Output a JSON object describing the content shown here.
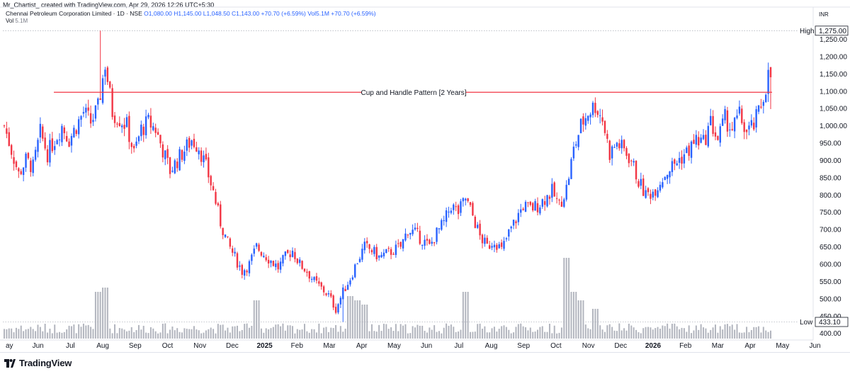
{
  "header": {
    "credit": "Mr_Chartist_ created with TradingView.com, Apr 29, 2026 12:26 UTC+5:30",
    "symbol": "Chennai Petroleum Corporation Limited · 1D · NSE",
    "ohlc": "O1,080.00  H1,145.00  L1,048.50  C1,143.00  +70.70 (+6.59%)  Vol5.1M  +70.70 (+6.59%)",
    "vol_label": "Vol",
    "vol_value": "5.1M"
  },
  "footer": {
    "brand": "TradingView"
  },
  "colors": {
    "up": "#2962ff",
    "down": "#f23645",
    "volume": "#b2b5be",
    "pattern_line": "#f23645",
    "axis_text": "#131722",
    "grid": "#e0e3eb"
  },
  "chart_data": {
    "type": "candlestick",
    "currency": "INR",
    "y_ticks": [
      "1,250.00",
      "1,200.00",
      "1,150.00",
      "1,100.00",
      "1,050.00",
      "1,000.00",
      "950.00",
      "900.00",
      "850.00",
      "800.00",
      "750.00",
      "700.00",
      "650.00",
      "600.00",
      "550.00",
      "500.00",
      "450.00",
      "400.00"
    ],
    "ylim": [
      385,
      1290
    ],
    "x_ticks": [
      "ay",
      "Jun",
      "Jul",
      "Aug",
      "Sep",
      "Oct",
      "Nov",
      "Dec",
      "2025",
      "Feb",
      "Mar",
      "Apr",
      "May",
      "Jun",
      "Jul",
      "Aug",
      "Sep",
      "Oct",
      "Nov",
      "Dec",
      "2026",
      "Feb",
      "Mar",
      "Apr",
      "May",
      "Jun"
    ],
    "bold_x_ticks": [
      "2025",
      "2026"
    ],
    "high": {
      "label": "High",
      "value": "1,275.00",
      "price": 1275
    },
    "low": {
      "label": "Low",
      "value": "433.10",
      "price": 433.1
    },
    "annotation": {
      "text": "Cup and Handle Pattern [2 Years]",
      "price": 1097
    },
    "price_path": [
      [
        0,
        1000
      ],
      [
        3,
        930
      ],
      [
        6,
        860
      ],
      [
        9,
        900
      ],
      [
        12,
        880
      ],
      [
        15,
        980
      ],
      [
        18,
        920
      ],
      [
        21,
        960
      ],
      [
        24,
        1000
      ],
      [
        27,
        960
      ],
      [
        30,
        1000
      ],
      [
        33,
        1040
      ],
      [
        36,
        1010
      ],
      [
        39,
        1050
      ],
      [
        42,
        1180
      ],
      [
        45,
        1040
      ],
      [
        48,
        1020
      ],
      [
        51,
        1000
      ],
      [
        54,
        920
      ],
      [
        57,
        990
      ],
      [
        60,
        1010
      ],
      [
        63,
        990
      ],
      [
        66,
        930
      ],
      [
        69,
        870
      ],
      [
        72,
        900
      ],
      [
        75,
        930
      ],
      [
        78,
        960
      ],
      [
        81,
        940
      ],
      [
        84,
        880
      ],
      [
        87,
        810
      ],
      [
        90,
        720
      ],
      [
        93,
        660
      ],
      [
        96,
        620
      ],
      [
        99,
        580
      ],
      [
        102,
        600
      ],
      [
        105,
        650
      ],
      [
        108,
        630
      ],
      [
        111,
        610
      ],
      [
        114,
        590
      ],
      [
        117,
        620
      ],
      [
        120,
        640
      ],
      [
        123,
        600
      ],
      [
        126,
        580
      ],
      [
        129,
        550
      ],
      [
        132,
        530
      ],
      [
        135,
        510
      ],
      [
        138,
        470
      ],
      [
        141,
        520
      ],
      [
        144,
        560
      ],
      [
        147,
        610
      ],
      [
        150,
        650
      ],
      [
        153,
        640
      ],
      [
        156,
        620
      ],
      [
        159,
        630
      ],
      [
        162,
        640
      ],
      [
        165,
        650
      ],
      [
        168,
        700
      ],
      [
        171,
        690
      ],
      [
        174,
        670
      ],
      [
        177,
        650
      ],
      [
        180,
        690
      ],
      [
        183,
        720
      ],
      [
        186,
        770
      ],
      [
        189,
        750
      ],
      [
        192,
        790
      ],
      [
        195,
        740
      ],
      [
        198,
        680
      ],
      [
        201,
        650
      ],
      [
        204,
        670
      ],
      [
        207,
        640
      ],
      [
        210,
        690
      ],
      [
        213,
        730
      ],
      [
        216,
        770
      ],
      [
        219,
        760
      ],
      [
        222,
        770
      ],
      [
        225,
        790
      ],
      [
        228,
        810
      ],
      [
        231,
        770
      ],
      [
        234,
        820
      ],
      [
        237,
        930
      ],
      [
        240,
        1000
      ],
      [
        243,
        1040
      ],
      [
        246,
        1060
      ],
      [
        249,
        1020
      ],
      [
        252,
        920
      ],
      [
        255,
        950
      ],
      [
        258,
        930
      ],
      [
        261,
        900
      ],
      [
        264,
        840
      ],
      [
        267,
        800
      ],
      [
        270,
        810
      ],
      [
        273,
        840
      ],
      [
        276,
        870
      ],
      [
        279,
        890
      ],
      [
        282,
        910
      ],
      [
        285,
        930
      ],
      [
        288,
        960
      ],
      [
        291,
        950
      ],
      [
        294,
        1010
      ],
      [
        297,
        960
      ],
      [
        300,
        1020
      ],
      [
        303,
        990
      ],
      [
        306,
        1030
      ],
      [
        309,
        980
      ],
      [
        312,
        1000
      ],
      [
        315,
        1060
      ],
      [
        318,
        1143
      ]
    ],
    "volume_spikes": [
      [
        39,
        0.55
      ],
      [
        42,
        0.6
      ],
      [
        105,
        0.45
      ],
      [
        144,
        0.5
      ],
      [
        147,
        0.45
      ],
      [
        150,
        0.4
      ],
      [
        192,
        0.55
      ],
      [
        234,
        0.95
      ],
      [
        237,
        0.55
      ],
      [
        240,
        0.45
      ],
      [
        246,
        0.35
      ]
    ]
  }
}
